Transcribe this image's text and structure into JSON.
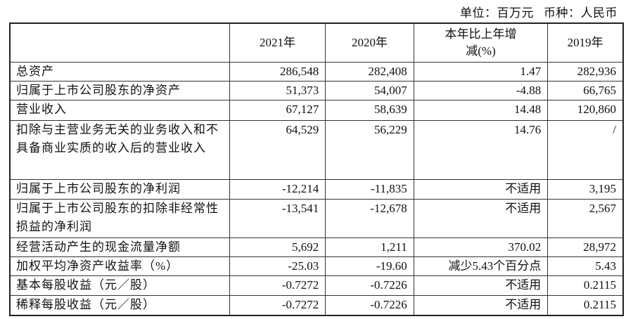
{
  "unit_line": {
    "unit": "单位：百万元",
    "currency": "币种：人民币"
  },
  "table": {
    "headers": [
      "",
      "2021年",
      "2020年",
      "本年比上年增减(%)",
      "2019年"
    ],
    "rows": [
      {
        "label": "总资产",
        "values": [
          "286,548",
          "282,408",
          "1.47",
          "282,936"
        ]
      },
      {
        "label": "归属于上市公司股东的净资产",
        "values": [
          "51,373",
          "54,007",
          "-4.88",
          "66,765"
        ]
      },
      {
        "label": "营业收入",
        "values": [
          "67,127",
          "58,639",
          "14.48",
          "120,860"
        ]
      },
      {
        "label": "扣除与主营业务无关的业务收入和不具备商业实质的收入后的营业收入",
        "values": [
          "64,529",
          "56,229",
          "14.76",
          "/"
        ]
      },
      {
        "label": "归属于上市公司股东的净利润",
        "values": [
          "-12,214",
          "-11,835",
          "不适用",
          "3,195"
        ]
      },
      {
        "label": "归属于上市公司股东的扣除非经常性损益的净利润",
        "values": [
          "-13,541",
          "-12,678",
          "不适用",
          "2,567"
        ]
      },
      {
        "label": "经营活动产生的现金流量净额",
        "values": [
          "5,692",
          "1,211",
          "370.02",
          "28,972"
        ]
      },
      {
        "label": "加权平均净资产收益率（%）",
        "values": [
          "-25.03",
          "-19.60",
          "减少5.43个百分点",
          "5.43"
        ]
      },
      {
        "label": "基本每股收益（元／股）",
        "values": [
          "-0.7272",
          "-0.7226",
          "不适用",
          "0.2115"
        ]
      },
      {
        "label": "稀释每股收益（元／股）",
        "values": [
          "-0.7272",
          "-0.7226",
          "不适用",
          "0.2115"
        ]
      }
    ]
  }
}
